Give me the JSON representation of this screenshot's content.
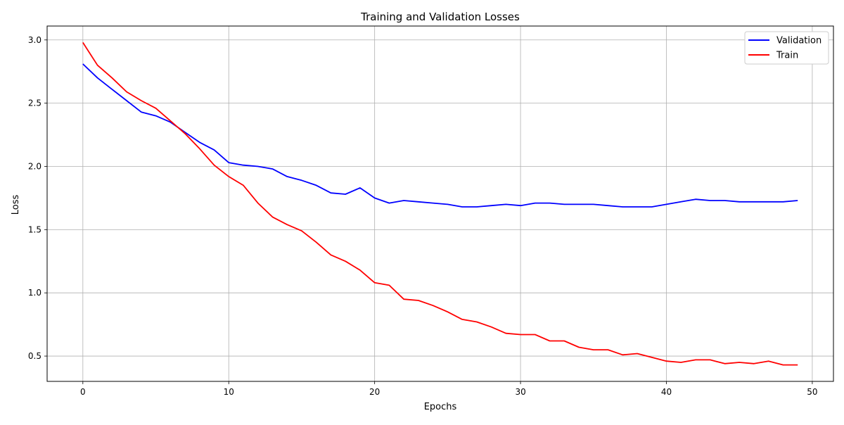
{
  "chart_data": {
    "type": "line",
    "title": "Training and Validation Losses",
    "xlabel": "Epochs",
    "ylabel": "Loss",
    "xlim": [
      -2.45,
      51.45
    ],
    "ylim": [
      0.3,
      3.11
    ],
    "xticks": [
      0,
      10,
      20,
      30,
      40,
      50
    ],
    "yticks": [
      0.5,
      1.0,
      1.5,
      2.0,
      2.5,
      3.0
    ],
    "ytick_labels": [
      "0.5",
      "1.0",
      "1.5",
      "2.0",
      "2.5",
      "3.0"
    ],
    "grid": true,
    "legend_position": "top-right",
    "x": [
      0,
      1,
      2,
      3,
      4,
      5,
      6,
      7,
      8,
      9,
      10,
      11,
      12,
      13,
      14,
      15,
      16,
      17,
      18,
      19,
      20,
      21,
      22,
      23,
      24,
      25,
      26,
      27,
      28,
      29,
      30,
      31,
      32,
      33,
      34,
      35,
      36,
      37,
      38,
      39,
      40,
      41,
      42,
      43,
      44,
      45,
      46,
      47,
      48,
      49
    ],
    "series": [
      {
        "name": "Validation",
        "color": "#0000ff",
        "values": [
          2.81,
          2.7,
          2.61,
          2.52,
          2.43,
          2.4,
          2.35,
          2.27,
          2.19,
          2.13,
          2.03,
          2.01,
          2.0,
          1.98,
          1.92,
          1.89,
          1.85,
          1.79,
          1.78,
          1.83,
          1.75,
          1.71,
          1.73,
          1.72,
          1.71,
          1.7,
          1.68,
          1.68,
          1.69,
          1.7,
          1.69,
          1.71,
          1.71,
          1.7,
          1.7,
          1.7,
          1.69,
          1.68,
          1.68,
          1.68,
          1.7,
          1.72,
          1.74,
          1.73,
          1.73,
          1.72,
          1.72,
          1.72,
          1.72,
          1.73
        ]
      },
      {
        "name": "Train",
        "color": "#ff0000",
        "values": [
          2.98,
          2.8,
          2.7,
          2.59,
          2.52,
          2.46,
          2.36,
          2.26,
          2.14,
          2.01,
          1.92,
          1.85,
          1.71,
          1.6,
          1.54,
          1.49,
          1.4,
          1.3,
          1.25,
          1.18,
          1.08,
          1.06,
          0.95,
          0.94,
          0.9,
          0.85,
          0.79,
          0.77,
          0.73,
          0.68,
          0.67,
          0.67,
          0.62,
          0.62,
          0.57,
          0.55,
          0.55,
          0.51,
          0.52,
          0.49,
          0.46,
          0.45,
          0.47,
          0.47,
          0.44,
          0.45,
          0.44,
          0.46,
          0.43,
          0.43
        ]
      }
    ]
  }
}
